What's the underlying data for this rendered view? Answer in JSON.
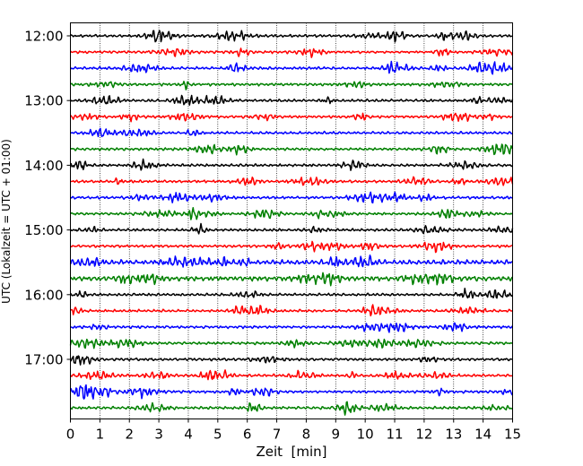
{
  "chart_data": {
    "type": "line",
    "title": "",
    "xlabel": "Zeit  [min]",
    "ylabel": "UTC (Lokalzeit = UTC + 01:00)",
    "xlim": [
      0,
      15
    ],
    "x_ticks": [
      "0",
      "1",
      "2",
      "3",
      "4",
      "5",
      "6",
      "7",
      "8",
      "9",
      "10",
      "11",
      "12",
      "13",
      "14",
      "15"
    ],
    "y_ticks": [
      "12:00",
      "13:00",
      "14:00",
      "15:00",
      "16:00",
      "17:00"
    ],
    "grid": "vertical, dotted, every 1 min",
    "trace_interval_min": 15,
    "traces_per_hour": 4,
    "color_cycle": [
      "#000000",
      "#ff0000",
      "#0000ff",
      "#008000"
    ],
    "traces": [
      {
        "start": "12:00",
        "color": "#000000"
      },
      {
        "start": "12:15",
        "color": "#ff0000"
      },
      {
        "start": "12:30",
        "color": "#0000ff"
      },
      {
        "start": "12:45",
        "color": "#008000"
      },
      {
        "start": "13:00",
        "color": "#000000"
      },
      {
        "start": "13:15",
        "color": "#ff0000"
      },
      {
        "start": "13:30",
        "color": "#0000ff"
      },
      {
        "start": "13:45",
        "color": "#008000"
      },
      {
        "start": "14:00",
        "color": "#000000"
      },
      {
        "start": "14:15",
        "color": "#ff0000"
      },
      {
        "start": "14:30",
        "color": "#0000ff"
      },
      {
        "start": "14:45",
        "color": "#008000"
      },
      {
        "start": "15:00",
        "color": "#000000"
      },
      {
        "start": "15:15",
        "color": "#ff0000"
      },
      {
        "start": "15:30",
        "color": "#0000ff"
      },
      {
        "start": "15:45",
        "color": "#008000"
      },
      {
        "start": "16:00",
        "color": "#000000"
      },
      {
        "start": "16:15",
        "color": "#ff0000"
      },
      {
        "start": "16:30",
        "color": "#0000ff"
      },
      {
        "start": "16:45",
        "color": "#008000"
      },
      {
        "start": "17:00",
        "color": "#000000"
      },
      {
        "start": "17:15",
        "color": "#ff0000"
      },
      {
        "start": "17:30",
        "color": "#0000ff"
      },
      {
        "start": "17:45",
        "color": "#008000"
      }
    ]
  }
}
